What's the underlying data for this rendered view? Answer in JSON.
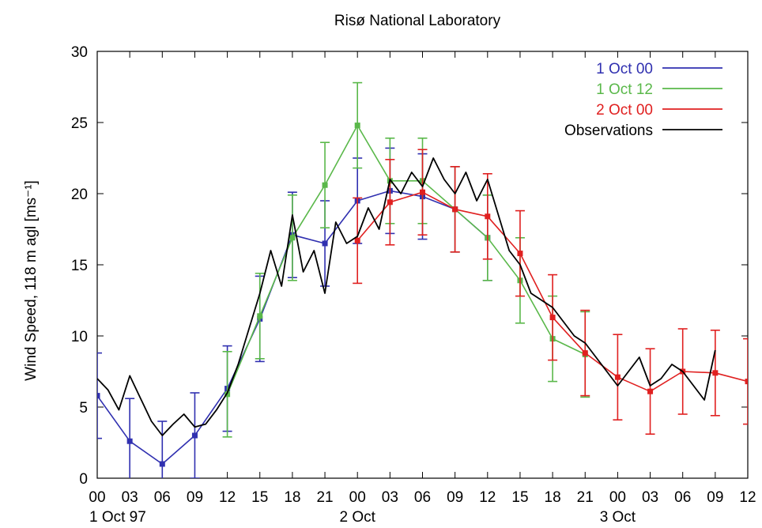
{
  "chart_data": {
    "type": "line",
    "title": "Risø National Laboratory",
    "ylabel": "Wind Speed, 118 m agl [ms⁻¹]",
    "xlabel": "",
    "ylim": [
      0,
      30
    ],
    "xlim_hours": [
      0,
      60
    ],
    "yticks": [
      0,
      5,
      10,
      15,
      20,
      25,
      30
    ],
    "xticks": [
      "00",
      "03",
      "06",
      "09",
      "12",
      "15",
      "18",
      "21",
      "00",
      "03",
      "06",
      "09",
      "12",
      "15",
      "18",
      "21",
      "00",
      "03",
      "06",
      "09",
      "12"
    ],
    "date_labels": [
      {
        "label": "1 Oct 97",
        "hour": 0
      },
      {
        "label": "2 Oct",
        "hour": 24
      },
      {
        "label": "3 Oct",
        "hour": 48
      }
    ],
    "legend_position": "top-right",
    "series": [
      {
        "name": "1 Oct 00",
        "color": "#3030b0",
        "x": [
          0,
          3,
          6,
          9,
          12,
          15,
          18,
          21,
          24,
          27,
          30,
          33,
          36
        ],
        "y": [
          5.8,
          2.6,
          1.0,
          3.0,
          6.3,
          11.2,
          17.1,
          16.5,
          19.5,
          20.2,
          19.8,
          18.9,
          16.9
        ],
        "err": [
          3.0,
          3.0,
          3.0,
          3.0,
          3.0,
          3.0,
          3.0,
          3.0,
          3.0,
          3.0,
          3.0,
          3.0,
          3.0
        ]
      },
      {
        "name": "1 Oct 12",
        "color": "#5ab84a",
        "x": [
          12,
          15,
          18,
          21,
          24,
          27,
          30,
          33,
          36,
          39,
          42,
          45
        ],
        "y": [
          5.9,
          11.4,
          16.9,
          20.6,
          24.8,
          20.9,
          20.9,
          18.9,
          16.9,
          13.9,
          9.8,
          8.7
        ],
        "err": [
          3.0,
          3.0,
          3.0,
          3.0,
          3.0,
          3.0,
          3.0,
          3.0,
          3.0,
          3.0,
          3.0,
          3.0
        ]
      },
      {
        "name": "2 Oct 00",
        "color": "#e02020",
        "x": [
          24,
          27,
          30,
          33,
          36,
          39,
          42,
          45,
          48,
          51,
          54,
          57,
          60
        ],
        "y": [
          16.7,
          19.4,
          20.1,
          18.9,
          18.4,
          15.8,
          11.3,
          8.8,
          7.1,
          6.1,
          7.5,
          7.4,
          6.8
        ],
        "err": [
          3.0,
          3.0,
          3.0,
          3.0,
          3.0,
          3.0,
          3.0,
          3.0,
          3.0,
          3.0,
          3.0,
          3.0,
          3.0
        ]
      },
      {
        "name": "Observations",
        "color": "#000000",
        "x": [
          0,
          1,
          2,
          3,
          4,
          5,
          6,
          7,
          8,
          9,
          10,
          11,
          12,
          13,
          14,
          15,
          16,
          17,
          18,
          19,
          20,
          21,
          22,
          23,
          24,
          25,
          26,
          27,
          28,
          29,
          30,
          31,
          32,
          33,
          34,
          35,
          36,
          37,
          38,
          39,
          40,
          41,
          42,
          43,
          44,
          45,
          46,
          47,
          48,
          49,
          50,
          51,
          52,
          53,
          54,
          55,
          56,
          57
        ],
        "y": [
          7.0,
          6.2,
          4.8,
          7.2,
          5.6,
          4.0,
          3.0,
          3.8,
          4.5,
          3.6,
          3.8,
          4.8,
          6.0,
          8.0,
          10.5,
          13.0,
          16.0,
          13.5,
          18.5,
          14.5,
          16.0,
          13.0,
          18.0,
          16.5,
          17.0,
          19.0,
          17.5,
          21.0,
          20.0,
          21.5,
          20.5,
          22.5,
          21.0,
          20.0,
          21.5,
          19.5,
          21.0,
          18.5,
          16.0,
          15.0,
          13.0,
          12.5,
          12.0,
          11.0,
          10.0,
          9.5,
          8.5,
          7.5,
          6.5,
          7.5,
          8.5,
          6.5,
          7.0,
          8.0,
          7.5,
          6.5,
          5.5,
          9.0
        ]
      }
    ]
  }
}
